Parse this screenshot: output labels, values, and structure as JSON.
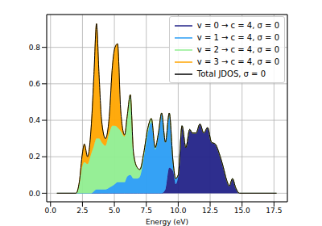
{
  "chart_data": {
    "type": "area",
    "stacked": true,
    "x_label": "Energy (eV)",
    "x": [
      0.5,
      2.0,
      2.25,
      2.5,
      2.65,
      2.9,
      3.2,
      3.4,
      3.6,
      3.8,
      4.0,
      4.3,
      4.6,
      4.85,
      5.05,
      5.25,
      5.5,
      5.8,
      6.0,
      6.25,
      6.5,
      6.8,
      7.0,
      7.3,
      7.6,
      7.9,
      8.2,
      8.45,
      8.7,
      9.0,
      9.3,
      9.6,
      9.8,
      10.0,
      10.3,
      10.6,
      10.9,
      11.1,
      11.4,
      11.7,
      12.0,
      12.3,
      12.6,
      12.9,
      13.2,
      13.5,
      13.8,
      14.0,
      14.25,
      14.5,
      14.8,
      17.7
    ],
    "series": [
      {
        "name": "v = 0 → c = 4, σ = 0",
        "color": "#232388",
        "values": [
          0,
          0,
          0,
          0,
          0,
          0,
          0,
          0,
          0,
          0,
          0,
          0,
          0,
          0,
          0,
          0,
          0,
          0,
          0,
          0,
          0,
          0,
          0,
          0,
          0,
          0,
          0,
          0,
          0,
          0.02,
          0.14,
          0.12,
          0.05,
          0.09,
          0.37,
          0.25,
          0.35,
          0.33,
          0.33,
          0.38,
          0.33,
          0.36,
          0.28,
          0.27,
          0.22,
          0.15,
          0.07,
          0.04,
          0.08,
          0.03,
          0,
          0
        ]
      },
      {
        "name": "v = 1 → c = 4, σ = 0",
        "color": "#2a9df4",
        "values": [
          0,
          0,
          0,
          0,
          0,
          0,
          0,
          0.01,
          0.02,
          0.02,
          0.02,
          0.02,
          0.03,
          0.04,
          0.05,
          0.06,
          0.06,
          0.06,
          0.09,
          0.1,
          0.08,
          0.08,
          0.09,
          0.19,
          0.32,
          0.39,
          0.24,
          0.32,
          0.44,
          0.26,
          0.3,
          0.05,
          0.03,
          0.01,
          0,
          0,
          0,
          0,
          0,
          0,
          0,
          0,
          0,
          0,
          0,
          0,
          0,
          0,
          0,
          0,
          0,
          0
        ]
      },
      {
        "name": "v = 2 → c = 4, σ = 0",
        "color": "#90ee90",
        "values": [
          0,
          0,
          0.05,
          0.15,
          0.17,
          0.16,
          0.22,
          0.25,
          0.28,
          0.28,
          0.26,
          0.24,
          0.3,
          0.33,
          0.32,
          0.3,
          0.28,
          0.25,
          0.33,
          0.44,
          0.14,
          0.06,
          0.04,
          0.03,
          0.03,
          0.02,
          0.01,
          0.01,
          0,
          0,
          0,
          0,
          0,
          0,
          0,
          0,
          0,
          0,
          0,
          0,
          0,
          0,
          0,
          0,
          0,
          0,
          0,
          0,
          0,
          0,
          0,
          0
        ]
      },
      {
        "name": "v = 3 → c = 4, σ = 0",
        "color": "#ffa500",
        "values": [
          0,
          0,
          0.01,
          0.07,
          0.1,
          0.04,
          0.16,
          0.39,
          0.63,
          0.35,
          0.12,
          0.04,
          0.09,
          0.33,
          0.43,
          0.46,
          0.11,
          0.01,
          0,
          0,
          0,
          0,
          0,
          0,
          0,
          0,
          0,
          0,
          0,
          0,
          0,
          0,
          0,
          0,
          0,
          0,
          0,
          0,
          0,
          0,
          0,
          0,
          0,
          0,
          0,
          0,
          0,
          0,
          0,
          0,
          0,
          0
        ]
      },
      {
        "name": "Total JDOS, σ = 0",
        "type": "line",
        "color": "#000000",
        "values": [
          0,
          0,
          0.06,
          0.22,
          0.27,
          0.2,
          0.38,
          0.65,
          0.93,
          0.65,
          0.4,
          0.3,
          0.42,
          0.7,
          0.8,
          0.82,
          0.45,
          0.32,
          0.42,
          0.54,
          0.22,
          0.14,
          0.13,
          0.22,
          0.35,
          0.41,
          0.25,
          0.33,
          0.44,
          0.28,
          0.44,
          0.17,
          0.08,
          0.1,
          0.37,
          0.25,
          0.35,
          0.33,
          0.33,
          0.38,
          0.33,
          0.36,
          0.28,
          0.27,
          0.22,
          0.15,
          0.07,
          0.04,
          0.08,
          0.03,
          0,
          0
        ]
      }
    ],
    "xlim": [
      -0.3,
      18.55
    ],
    "xticks": [
      {
        "value": 0,
        "label": "0.0"
      },
      2.5,
      {
        "value": 5,
        "label": "5.0"
      },
      7.5,
      {
        "value": 10,
        "label": "10.0"
      },
      12.5,
      {
        "value": 15,
        "label": "15.0"
      },
      17.5
    ],
    "ylim": [
      -0.047,
      0.98
    ],
    "yticks": [
      {
        "value": 0,
        "label": "0.0"
      },
      0.2,
      0.4,
      0.6,
      0.8
    ],
    "grid": true,
    "legend": "upper right"
  }
}
